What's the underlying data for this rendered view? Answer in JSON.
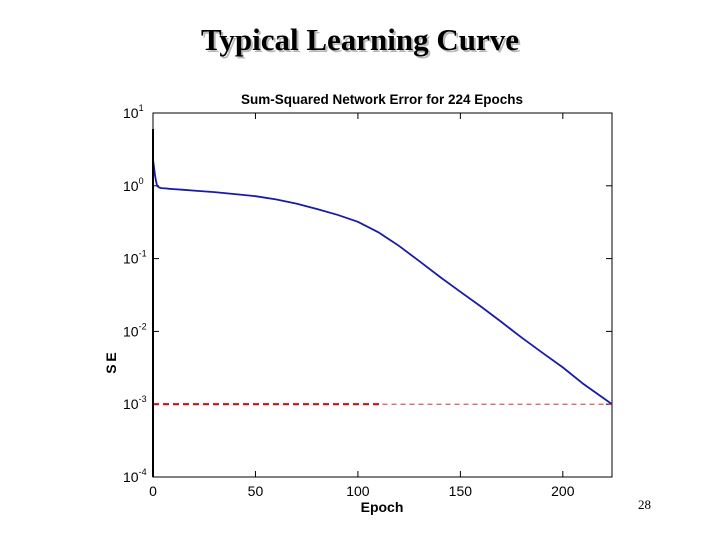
{
  "slide": {
    "title": "Typical Learning Curve",
    "number": "28"
  },
  "colors": {
    "error_curve": "#1a1aaa",
    "goal_line": "#cc1111"
  },
  "chart_data": {
    "type": "line",
    "title": "Sum-Squared Network Error for 224 Epochs",
    "xlabel": "Epoch",
    "ylabel": "S E",
    "xlim": [
      0,
      224
    ],
    "ylim": [
      0.0001,
      10
    ],
    "yscale": "log",
    "grid": false,
    "xticks": [
      0,
      50,
      100,
      150,
      200
    ],
    "yticks": [
      {
        "value": 10,
        "base": "10",
        "exp": "1"
      },
      {
        "value": 1,
        "base": "10",
        "exp": "0"
      },
      {
        "value": 0.1,
        "base": "10",
        "exp": "-1"
      },
      {
        "value": 0.01,
        "base": "10",
        "exp": "-2"
      },
      {
        "value": 0.001,
        "base": "10",
        "exp": "-3"
      },
      {
        "value": 0.0001,
        "base": "10",
        "exp": "-4"
      }
    ],
    "series": [
      {
        "kind": "error",
        "x": [
          0,
          0.5,
          1,
          1.5,
          2,
          3,
          4,
          6,
          8,
          10,
          15,
          20,
          30,
          40,
          50,
          60,
          70,
          80,
          90,
          100,
          110,
          120,
          130,
          140,
          150,
          160,
          170,
          180,
          190,
          200,
          210,
          220,
          224
        ],
        "y": [
          2.3,
          1.8,
          1.4,
          1.15,
          1.0,
          0.95,
          0.93,
          0.92,
          0.91,
          0.9,
          0.88,
          0.86,
          0.82,
          0.77,
          0.72,
          0.65,
          0.57,
          0.48,
          0.4,
          0.32,
          0.23,
          0.15,
          0.092,
          0.056,
          0.035,
          0.022,
          0.0135,
          0.0082,
          0.0051,
          0.0032,
          0.0019,
          0.0012,
          0.001
        ]
      },
      {
        "kind": "goal",
        "x": [
          0,
          224
        ],
        "y": [
          0.001,
          0.001
        ],
        "bold_until": 112
      }
    ]
  }
}
